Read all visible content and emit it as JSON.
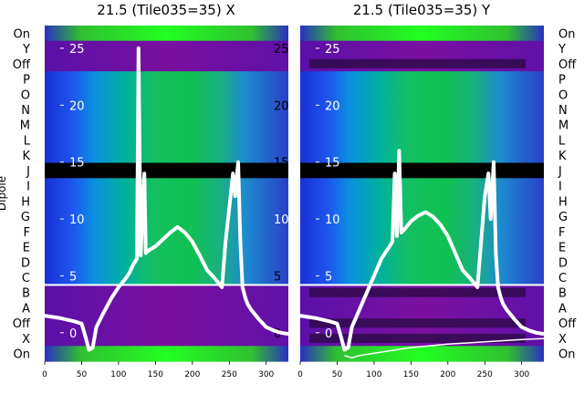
{
  "chart_data": [
    {
      "type": "heatmap",
      "title": "21.5 (Tile035=35) X",
      "ylabel": "Dipole",
      "x_ticks": [
        0,
        50,
        100,
        150,
        200,
        250,
        300
      ],
      "xlim": [
        0,
        330
      ],
      "row_labels": [
        "On",
        "Y",
        "Off",
        "P",
        "O",
        "N",
        "M",
        "L",
        "K",
        "J",
        "I",
        "H",
        "G",
        "F",
        "E",
        "D",
        "C",
        "B",
        "A",
        "Off",
        "X",
        "On"
      ],
      "overlay_ticks": [
        25,
        20,
        15,
        10,
        5,
        0
      ],
      "overlay_ylim": [
        -2.5,
        27
      ],
      "trace": {
        "x": [
          0,
          20,
          40,
          50,
          55,
          60,
          65,
          70,
          80,
          90,
          100,
          110,
          115,
          120,
          125,
          127,
          130,
          135,
          137,
          140,
          145,
          150,
          160,
          170,
          180,
          190,
          200,
          210,
          220,
          230,
          240,
          245,
          250,
          255,
          258,
          262,
          265,
          268,
          272,
          275,
          280,
          290,
          300,
          310,
          320,
          330
        ],
        "y": [
          1.5,
          1.3,
          1.0,
          0.8,
          -0.3,
          -1.5,
          -1.3,
          0.5,
          1.8,
          3.0,
          4.0,
          4.8,
          5.3,
          6.0,
          6.5,
          25.0,
          6.8,
          14.0,
          7.0,
          7.2,
          7.4,
          7.6,
          8.2,
          8.8,
          9.3,
          8.8,
          8.0,
          6.8,
          5.5,
          4.8,
          4.0,
          8.0,
          11.0,
          14.0,
          12.0,
          15.0,
          8.0,
          4.0,
          3.0,
          2.5,
          2.0,
          1.2,
          0.5,
          0.2,
          0.0,
          -0.1
        ]
      }
    },
    {
      "type": "heatmap",
      "title": "21.5 (Tile035=35) Y",
      "x_ticks": [
        0,
        50,
        100,
        150,
        200,
        250,
        300
      ],
      "xlim": [
        0,
        330
      ],
      "row_labels": [
        "On",
        "Y",
        "Off",
        "P",
        "O",
        "N",
        "M",
        "L",
        "K",
        "J",
        "I",
        "H",
        "G",
        "F",
        "E",
        "D",
        "C",
        "B",
        "A",
        "Off",
        "X",
        "On"
      ],
      "overlay_ticks": [
        25,
        20,
        15,
        10,
        5,
        0
      ],
      "overlay_ylim": [
        -2.5,
        27
      ],
      "trace": {
        "x": [
          0,
          20,
          40,
          50,
          55,
          60,
          65,
          70,
          80,
          90,
          100,
          110,
          115,
          120,
          125,
          128,
          131,
          134,
          137,
          140,
          145,
          150,
          160,
          170,
          180,
          190,
          200,
          210,
          220,
          230,
          240,
          245,
          250,
          255,
          258,
          262,
          265,
          268,
          272,
          275,
          280,
          290,
          300,
          310,
          320,
          330
        ],
        "y": [
          1.5,
          1.3,
          1.0,
          0.8,
          -0.3,
          -1.5,
          -1.3,
          0.5,
          2.0,
          3.5,
          5.0,
          6.5,
          7.0,
          7.5,
          8.0,
          14.0,
          8.5,
          16.0,
          8.8,
          9.0,
          9.4,
          9.8,
          10.3,
          10.6,
          10.2,
          9.5,
          8.5,
          7.0,
          5.5,
          4.8,
          4.0,
          8.0,
          12.0,
          14.0,
          10.0,
          15.0,
          7.0,
          4.0,
          3.0,
          2.5,
          2.0,
          1.2,
          0.5,
          0.2,
          0.0,
          -0.1
        ]
      },
      "trace2": {
        "x": [
          60,
          70,
          80,
          100,
          150,
          200,
          250,
          300,
          330
        ],
        "y": [
          -2.0,
          -2.2,
          -2.0,
          -1.8,
          -1.3,
          -1.0,
          -0.8,
          -0.6,
          -0.5
        ]
      }
    }
  ]
}
